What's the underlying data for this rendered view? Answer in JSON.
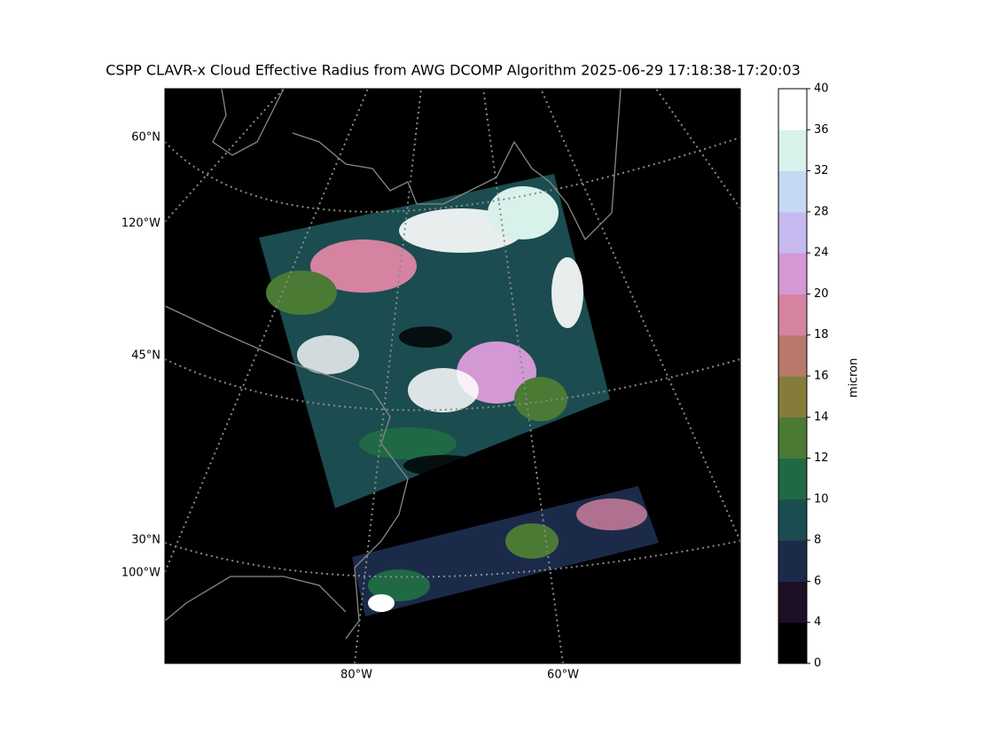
{
  "title": "CSPP CLAVR-x Cloud Effective Radius from AWG DCOMP Algorithm 2025-06-29 17:18:38-17:20:03",
  "map": {
    "lat_labels": [
      "60°N",
      "45°N",
      "30°N"
    ],
    "lon_labels_left": [
      "120°W",
      "100°W"
    ],
    "lon_labels_bottom": [
      "80°W",
      "60°W"
    ]
  },
  "colorbar": {
    "label": "micron",
    "ticks": [
      0,
      4,
      6,
      8,
      10,
      12,
      14,
      16,
      18,
      20,
      24,
      28,
      32,
      36,
      40
    ],
    "colors": [
      "#000000",
      "#1d0f25",
      "#1c2a4a",
      "#1b4c50",
      "#1f6a44",
      "#4a7a34",
      "#867c3a",
      "#b8796a",
      "#d583a0",
      "#d498d5",
      "#c6b9f0",
      "#c4d9f2",
      "#d9f1eb",
      "#ffffff"
    ]
  }
}
